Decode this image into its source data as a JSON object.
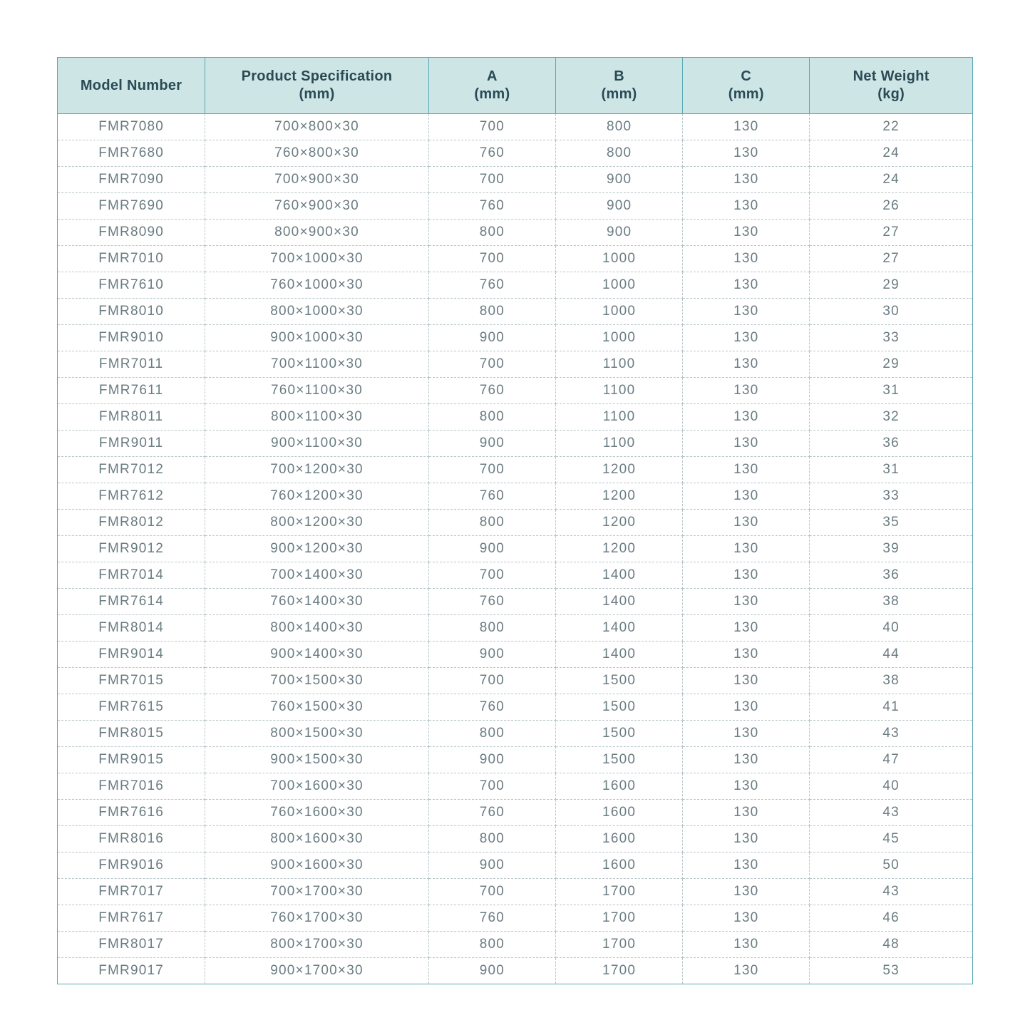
{
  "table": {
    "columns": [
      {
        "line1": "Model Number",
        "line2": ""
      },
      {
        "line1": "Product Specification",
        "line2": "(mm)"
      },
      {
        "line1": "A",
        "line2": "(mm)"
      },
      {
        "line1": "B",
        "line2": "(mm)"
      },
      {
        "line1": "C",
        "line2": "(mm)"
      },
      {
        "line1": "Net Weight",
        "line2": "(kg)"
      }
    ],
    "rows": [
      [
        "FMR7080",
        "700×800×30",
        "700",
        "800",
        "130",
        "22"
      ],
      [
        "FMR7680",
        "760×800×30",
        "760",
        "800",
        "130",
        "24"
      ],
      [
        "FMR7090",
        "700×900×30",
        "700",
        "900",
        "130",
        "24"
      ],
      [
        "FMR7690",
        "760×900×30",
        "760",
        "900",
        "130",
        "26"
      ],
      [
        "FMR8090",
        "800×900×30",
        "800",
        "900",
        "130",
        "27"
      ],
      [
        "FMR7010",
        "700×1000×30",
        "700",
        "1000",
        "130",
        "27"
      ],
      [
        "FMR7610",
        "760×1000×30",
        "760",
        "1000",
        "130",
        "29"
      ],
      [
        "FMR8010",
        "800×1000×30",
        "800",
        "1000",
        "130",
        "30"
      ],
      [
        "FMR9010",
        "900×1000×30",
        "900",
        "1000",
        "130",
        "33"
      ],
      [
        "FMR7011",
        "700×1100×30",
        "700",
        "1100",
        "130",
        "29"
      ],
      [
        "FMR7611",
        "760×1100×30",
        "760",
        "1100",
        "130",
        "31"
      ],
      [
        "FMR8011",
        "800×1100×30",
        "800",
        "1100",
        "130",
        "32"
      ],
      [
        "FMR9011",
        "900×1100×30",
        "900",
        "1100",
        "130",
        "36"
      ],
      [
        "FMR7012",
        "700×1200×30",
        "700",
        "1200",
        "130",
        "31"
      ],
      [
        "FMR7612",
        "760×1200×30",
        "760",
        "1200",
        "130",
        "33"
      ],
      [
        "FMR8012",
        "800×1200×30",
        "800",
        "1200",
        "130",
        "35"
      ],
      [
        "FMR9012",
        "900×1200×30",
        "900",
        "1200",
        "130",
        "39"
      ],
      [
        "FMR7014",
        "700×1400×30",
        "700",
        "1400",
        "130",
        "36"
      ],
      [
        "FMR7614",
        "760×1400×30",
        "760",
        "1400",
        "130",
        "38"
      ],
      [
        "FMR8014",
        "800×1400×30",
        "800",
        "1400",
        "130",
        "40"
      ],
      [
        "FMR9014",
        "900×1400×30",
        "900",
        "1400",
        "130",
        "44"
      ],
      [
        "FMR7015",
        "700×1500×30",
        "700",
        "1500",
        "130",
        "38"
      ],
      [
        "FMR7615",
        "760×1500×30",
        "760",
        "1500",
        "130",
        "41"
      ],
      [
        "FMR8015",
        "800×1500×30",
        "800",
        "1500",
        "130",
        "43"
      ],
      [
        "FMR9015",
        "900×1500×30",
        "900",
        "1500",
        "130",
        "47"
      ],
      [
        "FMR7016",
        "700×1600×30",
        "700",
        "1600",
        "130",
        "40"
      ],
      [
        "FMR7616",
        "760×1600×30",
        "760",
        "1600",
        "130",
        "43"
      ],
      [
        "FMR8016",
        "800×1600×30",
        "800",
        "1600",
        "130",
        "45"
      ],
      [
        "FMR9016",
        "900×1600×30",
        "900",
        "1600",
        "130",
        "50"
      ],
      [
        "FMR7017",
        "700×1700×30",
        "700",
        "1700",
        "130",
        "43"
      ],
      [
        "FMR7617",
        "760×1700×30",
        "760",
        "1700",
        "130",
        "46"
      ],
      [
        "FMR8017",
        "800×1700×30",
        "800",
        "1700",
        "130",
        "48"
      ],
      [
        "FMR9017",
        "900×1700×30",
        "900",
        "1700",
        "130",
        "53"
      ]
    ],
    "colors": {
      "header_bg": "#cde5e5",
      "header_text": "#2b4a55",
      "border": "#5aa9b5",
      "body_text": "#6a7c82",
      "row_divider": "#b8c6c9",
      "background": "#ffffff"
    }
  }
}
